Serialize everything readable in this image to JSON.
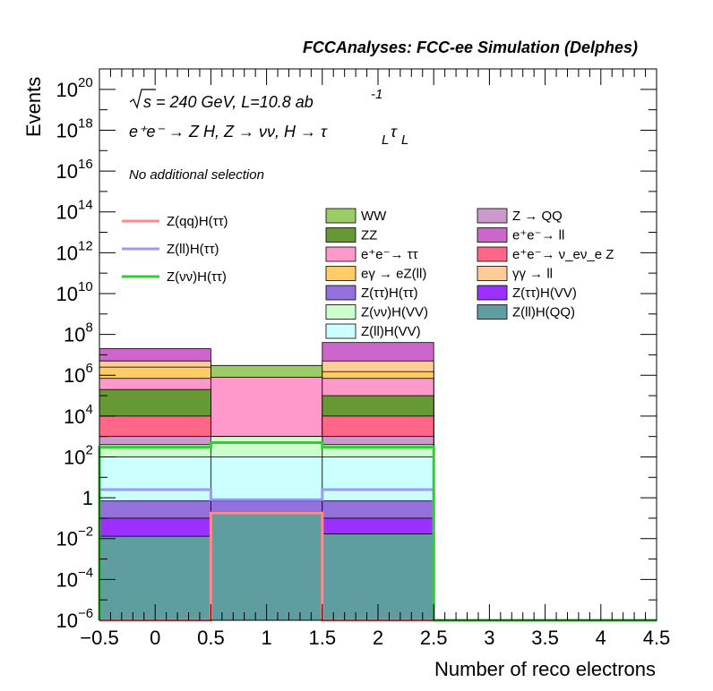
{
  "chart_data": {
    "type": "bar",
    "title": "FCCAnalyses: FCC-ee Simulation (Delphes)",
    "xlabel": "Number of reco electrons",
    "ylabel": "Events",
    "xlim": [
      -0.5,
      4.5
    ],
    "ylim": [
      1e-06,
      1e+21
    ],
    "yscale": "log",
    "bins": [
      [
        -0.5,
        0.5
      ],
      [
        0.5,
        1.5
      ],
      [
        1.5,
        2.5
      ]
    ],
    "x_ticks": [
      "−0.5",
      "0",
      "0.5",
      "1",
      "1.5",
      "2",
      "2.5",
      "3",
      "3.5",
      "4",
      "4.5"
    ],
    "y_ticks": [
      {
        "base": "10",
        "exp": "−6",
        "value": 1e-06
      },
      {
        "base": "10",
        "exp": "−4",
        "value": 0.0001
      },
      {
        "base": "10",
        "exp": "−2",
        "value": 0.01
      },
      {
        "base": "1",
        "exp": "",
        "value": 1
      },
      {
        "base": "10",
        "exp": "2",
        "value": 100.0
      },
      {
        "base": "10",
        "exp": "4",
        "value": 10000.0
      },
      {
        "base": "10",
        "exp": "6",
        "value": 1000000.0
      },
      {
        "base": "10",
        "exp": "8",
        "value": 100000000.0
      },
      {
        "base": "10",
        "exp": "10",
        "value": 10000000000.0
      },
      {
        "base": "10",
        "exp": "12",
        "value": 1000000000000.0
      },
      {
        "base": "10",
        "exp": "14",
        "value": 100000000000000.0
      },
      {
        "base": "10",
        "exp": "16",
        "value": 1e+16
      },
      {
        "base": "10",
        "exp": "18",
        "value": 1e+18
      },
      {
        "base": "10",
        "exp": "20",
        "value": 1e+20
      }
    ],
    "annotations": {
      "energy": "s = 240 GeV, L=10.8 ab",
      "energy_exp": "-1",
      "process": "e⁺e⁻ → Z H, Z → νν, H → τ",
      "no_selection": "No additional selection"
    },
    "stack": [
      {
        "name": "Z(ll)H(QQ)",
        "color": "#5f9ea0",
        "cumulative": [
          0.013,
          0.2,
          0.017
        ]
      },
      {
        "name": "Z(ττ)H(VV)",
        "color": "#9b30ff",
        "cumulative": [
          0.1,
          0.2,
          0.1
        ]
      },
      {
        "name": "Z(ττ)H(ττ)",
        "color": "#9370db",
        "cumulative": [
          0.7,
          0.7,
          0.7
        ]
      },
      {
        "name": "Z(ll)H(VV)",
        "color": "#ccffff",
        "cumulative": [
          100,
          100,
          100
        ]
      },
      {
        "name": "Z(νν)H(VV)",
        "color": "#ccffcc",
        "cumulative": [
          400,
          1000,
          400
        ]
      },
      {
        "name": "Z → QQ",
        "color": "#cc99cc",
        "cumulative": [
          1000,
          1000,
          1000
        ]
      },
      {
        "name": "e⁺e⁻→ ν_eν_e Z",
        "color": "#ff6688",
        "cumulative": [
          10000,
          1000,
          10000
        ]
      },
      {
        "name": "ZZ",
        "color": "#669933",
        "cumulative": [
          200000,
          1000,
          100000
        ]
      },
      {
        "name": "e⁺e⁻→ ττ",
        "color": "#ff99cc",
        "cumulative": [
          700000,
          800000,
          700000
        ]
      },
      {
        "name": "eγ → eZ(ll)",
        "color": "#ffcc66",
        "cumulative": [
          2500000,
          800000,
          1500000
        ]
      },
      {
        "name": "γγ → ll",
        "color": "#ffcc99",
        "cumulative": [
          5000000,
          800000,
          5000000
        ]
      },
      {
        "name": "WW",
        "color": "#99cc66",
        "cumulative": [
          5000000,
          3000000,
          3000000
        ]
      },
      {
        "name": "e⁺e⁻→ ll",
        "color": "#cc66cc",
        "cumulative": [
          20000000,
          3000000,
          40000000
        ]
      }
    ],
    "overlays": [
      {
        "name": "Z(qq)H(ττ)",
        "color": "#ff8888",
        "width": 3,
        "values": [
          1e-06,
          0.18,
          1e-06
        ]
      },
      {
        "name": "Z(ll)H(ττ)",
        "color": "#9999ff",
        "width": 3,
        "values": [
          2.5,
          0.8,
          2.5
        ]
      },
      {
        "name": "Z(νν)H(ττ)",
        "color": "#33cc33",
        "width": 3,
        "values": [
          300,
          500,
          300
        ]
      }
    ],
    "legend_left": [
      {
        "label": "Z(qq)H(ττ)",
        "color": "#ff8888",
        "kind": "line"
      },
      {
        "label": "Z(ll)H(ττ)",
        "color": "#9999ff",
        "kind": "line"
      },
      {
        "label": "Z(νν)H(ττ)",
        "color": "#33cc33",
        "kind": "line"
      }
    ],
    "legend_mid": [
      {
        "label": "WW",
        "color": "#99cc66"
      },
      {
        "label": "ZZ",
        "color": "#669933"
      },
      {
        "label": "e⁺e⁻→ ττ",
        "color": "#ff99cc"
      },
      {
        "label": "eγ → eZ(ll)",
        "color": "#ffcc66"
      },
      {
        "label": "Z(ττ)H(ττ)",
        "color": "#9370db"
      },
      {
        "label": "Z(νν)H(VV)",
        "color": "#ccffcc"
      },
      {
        "label": "Z(ll)H(VV)",
        "color": "#ccffff"
      }
    ],
    "legend_right": [
      {
        "label": "Z → QQ",
        "color": "#cc99cc"
      },
      {
        "label": "e⁺e⁻→ ll",
        "color": "#cc66cc"
      },
      {
        "label": "e⁺e⁻→ ν_eν_e Z",
        "color": "#ff6688"
      },
      {
        "label": "γγ → ll",
        "color": "#ffcc99"
      },
      {
        "label": "Z(ττ)H(VV)",
        "color": "#9b30ff"
      },
      {
        "label": "Z(ll)H(QQ)",
        "color": "#5f9ea0"
      }
    ]
  }
}
